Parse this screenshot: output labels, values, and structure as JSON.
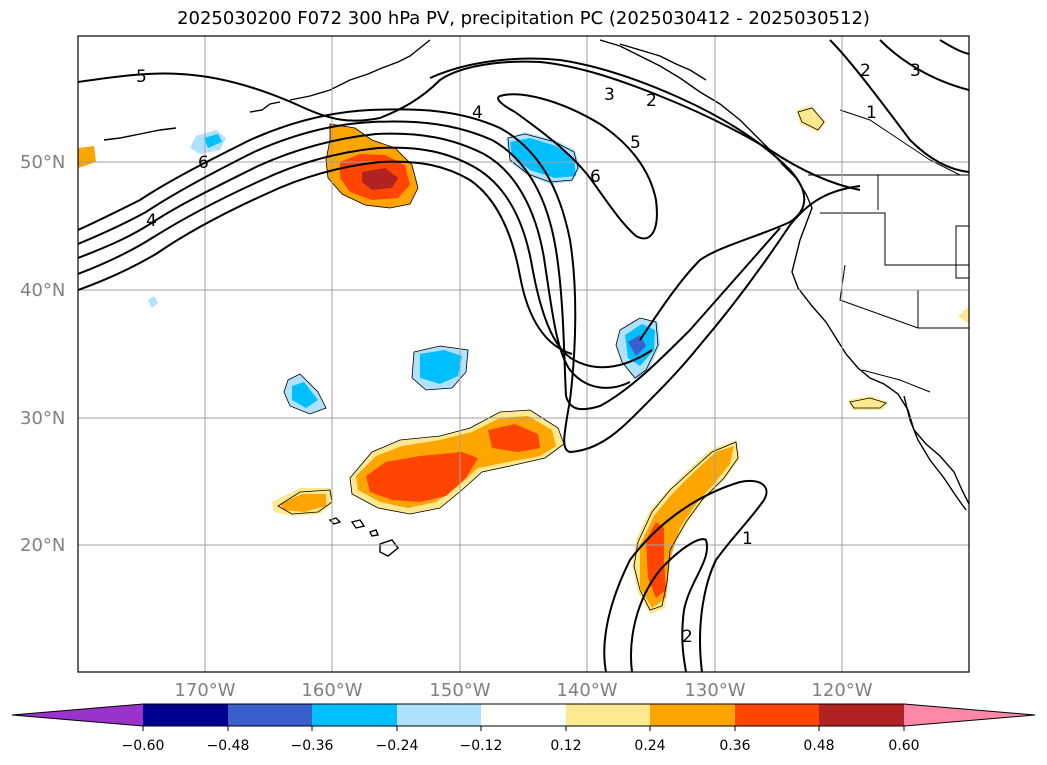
{
  "title": "2025030200 F072 300 hPa PV, precipitation PC (2025030412 - 2025030512)",
  "lat_labels": [
    "50°N",
    "40°N",
    "30°N",
    "20°N"
  ],
  "lon_labels": [
    "170°W",
    "160°W",
    "150°W",
    "140°W",
    "130°W",
    "120°W"
  ],
  "colorbar": {
    "ticks": [
      "−0.60",
      "−0.48",
      "−0.36",
      "−0.24",
      "−0.12",
      "0.12",
      "0.24",
      "0.36",
      "0.48",
      "0.60"
    ],
    "colors": [
      "#9933cc",
      "#000090",
      "#3a5fcd",
      "#00bfff",
      "#b0e2ff",
      "#ffffff",
      "#fee890",
      "#ffa500",
      "#ff4500",
      "#b22222",
      "#ff88a8"
    ]
  },
  "contour_labels": {
    "pv5_nw": "5",
    "pv6_w": "6",
    "pv4_w": "4",
    "pv4_c": "4",
    "pv3_ne": "3",
    "pv2_ne": "2",
    "pv5_ne": "5",
    "pv6_c": "6",
    "pv2_far_ne": "2",
    "pv3_far_ne": "3",
    "pv1_far_ne": "1",
    "pv1_s": "1",
    "pv2_s": "2"
  }
}
